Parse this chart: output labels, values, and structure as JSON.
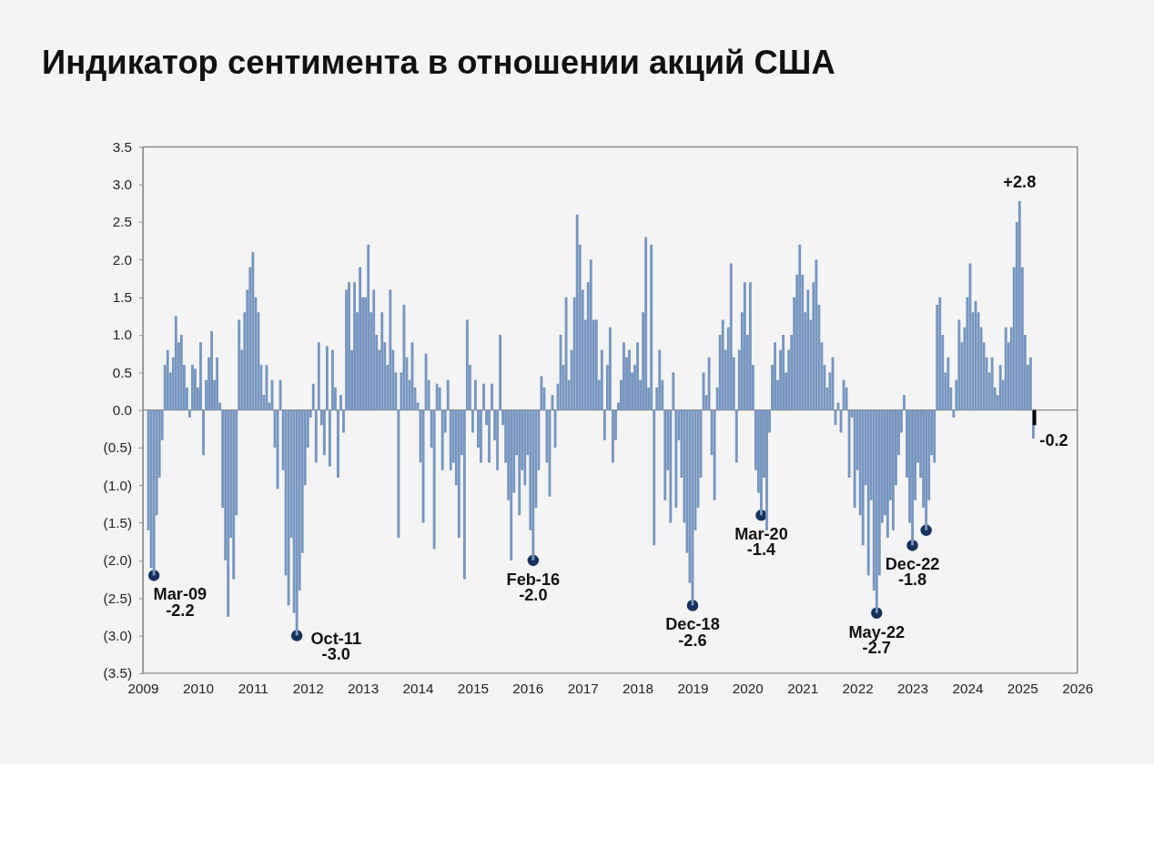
{
  "chart_data": {
    "type": "bar",
    "title": "Индикатор сентимента в отношении акций США",
    "xlim": [
      2009,
      2026
    ],
    "xticks": [
      2009,
      2010,
      2011,
      2012,
      2013,
      2014,
      2015,
      2016,
      2017,
      2018,
      2019,
      2020,
      2021,
      2022,
      2023,
      2024,
      2025,
      2026
    ],
    "ylim": [
      -3.5,
      3.5
    ],
    "yticks": [
      {
        "value": -3.5,
        "label": "(3.5)"
      },
      {
        "value": -3,
        "label": "(3.0)"
      },
      {
        "value": -2.5,
        "label": "(2.5)"
      },
      {
        "value": -2,
        "label": "(2.0)"
      },
      {
        "value": -1.5,
        "label": "(1.5)"
      },
      {
        "value": -1,
        "label": "(1.0)"
      },
      {
        "value": -0.5,
        "label": "(0.5)"
      },
      {
        "value": 0,
        "label": "0.0"
      },
      0.5,
      {
        "value": 1,
        "label": "1.0"
      },
      1.5,
      {
        "value": 2,
        "label": "2.0"
      },
      2.5,
      {
        "value": 3,
        "label": "3.0"
      },
      3.5
    ],
    "x": [
      2009.1,
      2009.15,
      2009.2,
      2009.25,
      2009.3,
      2009.35,
      2009.4,
      2009.45,
      2009.5,
      2009.55,
      2009.6,
      2009.65,
      2009.7,
      2009.75,
      2009.8,
      2009.85,
      2009.9,
      2009.95,
      2010.0,
      2010.05,
      2010.1,
      2010.15,
      2010.2,
      2010.25,
      2010.3,
      2010.35,
      2010.4,
      2010.45,
      2010.5,
      2010.55,
      2010.6,
      2010.65,
      2010.7,
      2010.75,
      2010.8,
      2010.85,
      2010.9,
      2010.95,
      2011.0,
      2011.05,
      2011.1,
      2011.15,
      2011.2,
      2011.25,
      2011.3,
      2011.35,
      2011.4,
      2011.45,
      2011.5,
      2011.55,
      2011.6,
      2011.65,
      2011.7,
      2011.75,
      2011.8,
      2011.85,
      2011.9,
      2011.95,
      2012.0,
      2012.05,
      2012.1,
      2012.15,
      2012.2,
      2012.25,
      2012.3,
      2012.35,
      2012.4,
      2012.45,
      2012.5,
      2012.55,
      2012.6,
      2012.65,
      2012.7,
      2012.75,
      2012.8,
      2012.85,
      2012.9,
      2012.95,
      2013.0,
      2013.05,
      2013.1,
      2013.15,
      2013.2,
      2013.25,
      2013.3,
      2013.35,
      2013.4,
      2013.45,
      2013.5,
      2013.55,
      2013.6,
      2013.65,
      2013.7,
      2013.75,
      2013.8,
      2013.85,
      2013.9,
      2013.95,
      2014.0,
      2014.05,
      2014.1,
      2014.15,
      2014.2,
      2014.25,
      2014.3,
      2014.35,
      2014.4,
      2014.45,
      2014.5,
      2014.55,
      2014.6,
      2014.65,
      2014.7,
      2014.75,
      2014.8,
      2014.85,
      2014.9,
      2014.95,
      2015.0,
      2015.05,
      2015.1,
      2015.15,
      2015.2,
      2015.25,
      2015.3,
      2015.35,
      2015.4,
      2015.45,
      2015.5,
      2015.55,
      2015.6,
      2015.65,
      2015.7,
      2015.75,
      2015.8,
      2015.85,
      2015.9,
      2015.95,
      2016.0,
      2016.05,
      2016.1,
      2016.15,
      2016.2,
      2016.25,
      2016.3,
      2016.35,
      2016.4,
      2016.45,
      2016.5,
      2016.55,
      2016.6,
      2016.65,
      2016.7,
      2016.75,
      2016.8,
      2016.85,
      2016.9,
      2016.95,
      2017.0,
      2017.05,
      2017.1,
      2017.15,
      2017.2,
      2017.25,
      2017.3,
      2017.35,
      2017.4,
      2017.45,
      2017.5,
      2017.55,
      2017.6,
      2017.65,
      2017.7,
      2017.75,
      2017.8,
      2017.85,
      2017.9,
      2017.95,
      2018.0,
      2018.05,
      2018.1,
      2018.15,
      2018.2,
      2018.25,
      2018.3,
      2018.35,
      2018.4,
      2018.45,
      2018.5,
      2018.55,
      2018.6,
      2018.65,
      2018.7,
      2018.75,
      2018.8,
      2018.85,
      2018.9,
      2018.95,
      2019.0,
      2019.05,
      2019.1,
      2019.15,
      2019.2,
      2019.25,
      2019.3,
      2019.35,
      2019.4,
      2019.45,
      2019.5,
      2019.55,
      2019.6,
      2019.65,
      2019.7,
      2019.75,
      2019.8,
      2019.85,
      2019.9,
      2019.95,
      2020.0,
      2020.05,
      2020.1,
      2020.15,
      2020.2,
      2020.25,
      2020.3,
      2020.35,
      2020.4,
      2020.45,
      2020.5,
      2020.55,
      2020.6,
      2020.65,
      2020.7,
      2020.75,
      2020.8,
      2020.85,
      2020.9,
      2020.95,
      2021.0,
      2021.05,
      2021.1,
      2021.15,
      2021.2,
      2021.25,
      2021.3,
      2021.35,
      2021.4,
      2021.45,
      2021.5,
      2021.55,
      2021.6,
      2021.65,
      2021.7,
      2021.75,
      2021.8,
      2021.85,
      2021.9,
      2021.95,
      2022.0,
      2022.05,
      2022.1,
      2022.15,
      2022.2,
      2022.25,
      2022.3,
      2022.35,
      2022.4,
      2022.45,
      2022.5,
      2022.55,
      2022.6,
      2022.65,
      2022.7,
      2022.75,
      2022.8,
      2022.85,
      2022.9,
      2022.95,
      2023.0,
      2023.05,
      2023.1,
      2023.15,
      2023.2,
      2023.25,
      2023.3,
      2023.35,
      2023.4,
      2023.45,
      2023.5,
      2023.55,
      2023.6,
      2023.65,
      2023.7,
      2023.75,
      2023.8,
      2023.85,
      2023.9,
      2023.95,
      2024.0,
      2024.05,
      2024.1,
      2024.15,
      2024.2,
      2024.25,
      2024.3,
      2024.35,
      2024.4,
      2024.45,
      2024.5,
      2024.55,
      2024.6,
      2024.65,
      2024.7,
      2024.75,
      2024.8,
      2024.85,
      2024.9,
      2024.95,
      2025.0,
      2025.05,
      2025.1,
      2025.15,
      2025.2
    ],
    "series": [
      {
        "color": "#7796c0",
        "values": [
          -1.6,
          -2.1,
          -2.2,
          -1.4,
          -0.9,
          -0.4,
          0.6,
          0.8,
          0.5,
          0.7,
          1.25,
          0.9,
          1.0,
          0.6,
          0.3,
          -0.1,
          0.6,
          0.55,
          0.3,
          0.9,
          -0.6,
          0.4,
          0.7,
          1.05,
          0.4,
          0.7,
          0.1,
          -1.3,
          -2.0,
          -2.75,
          -1.7,
          -2.25,
          -1.4,
          1.2,
          0.8,
          1.3,
          1.6,
          1.9,
          2.1,
          1.5,
          1.3,
          0.6,
          0.2,
          0.6,
          0.1,
          0.4,
          -0.5,
          -1.05,
          0.4,
          -0.8,
          -2.2,
          -2.6,
          -1.7,
          -2.7,
          -3.0,
          -2.4,
          -1.9,
          -1.0,
          -0.5,
          -0.1,
          0.35,
          -0.7,
          0.9,
          -0.2,
          -0.6,
          0.85,
          -0.75,
          0.8,
          0.3,
          -0.9,
          0.2,
          -0.3,
          1.6,
          1.7,
          0.8,
          1.7,
          1.3,
          1.9,
          1.5,
          1.5,
          2.2,
          1.3,
          1.6,
          1.0,
          0.8,
          1.3,
          0.9,
          0.6,
          1.6,
          0.8,
          0.5,
          -1.7,
          0.5,
          1.4,
          0.7,
          0.4,
          0.9,
          0.3,
          0.1,
          -0.7,
          -1.5,
          0.75,
          0.4,
          -0.5,
          -1.85,
          0.35,
          0.3,
          -0.8,
          -0.3,
          0.4,
          -0.8,
          -0.7,
          -1.0,
          -1.7,
          -0.6,
          -2.25,
          1.2,
          0.6,
          -0.3,
          0.4,
          -0.5,
          -0.7,
          0.35,
          -0.2,
          -0.7,
          0.35,
          -0.4,
          -0.8,
          1.0,
          -0.2,
          -0.7,
          -1.2,
          -2.0,
          -1.1,
          -0.6,
          -1.4,
          -0.8,
          -1.0,
          -0.6,
          -1.6,
          -2.0,
          -1.3,
          -0.8,
          0.45,
          0.3,
          -0.7,
          -1.15,
          0.2,
          -0.5,
          0.35,
          1.0,
          0.6,
          1.5,
          0.4,
          0.8,
          1.5,
          2.6,
          2.2,
          1.6,
          1.2,
          1.7,
          2.0,
          1.2,
          1.2,
          0.4,
          0.8,
          -0.4,
          0.6,
          1.1,
          -0.7,
          -0.4,
          0.1,
          0.4,
          0.9,
          0.7,
          0.8,
          0.5,
          0.6,
          0.9,
          0.4,
          1.3,
          2.3,
          0.3,
          2.2,
          -1.8,
          0.3,
          0.8,
          0.4,
          -1.2,
          -0.8,
          -1.5,
          0.5,
          -1.3,
          -0.4,
          -0.9,
          -1.5,
          -1.9,
          -2.3,
          -2.6,
          -1.6,
          -1.3,
          -0.9,
          0.5,
          0.2,
          0.7,
          -0.6,
          -1.2,
          0.3,
          1.0,
          1.2,
          0.8,
          1.1,
          1.95,
          0.7,
          -0.7,
          0.8,
          1.3,
          1.7,
          1.0,
          1.7,
          0.6,
          -0.8,
          -1.1,
          -1.4,
          -0.9,
          -1.6,
          -0.3,
          0.6,
          0.9,
          0.4,
          0.8,
          1.0,
          0.5,
          0.8,
          1.0,
          1.5,
          1.8,
          2.2,
          1.8,
          1.3,
          1.6,
          1.2,
          1.7,
          2.0,
          1.4,
          0.9,
          0.6,
          0.3,
          0.5,
          0.7,
          -0.2,
          0.1,
          -0.3,
          0.4,
          0.3,
          -0.9,
          -0.1,
          -1.3,
          -0.8,
          -1.4,
          -1.8,
          -1.0,
          -2.2,
          -1.2,
          -2.4,
          -2.7,
          -2.2,
          -1.5,
          -1.4,
          -1.7,
          -1.2,
          -1.6,
          -1.0,
          -0.6,
          -0.3,
          0.2,
          -0.9,
          -1.5,
          -1.8,
          -1.2,
          -0.7,
          -0.9,
          -1.3,
          -1.6,
          -1.2,
          -0.6,
          -0.7,
          1.4,
          1.5,
          1.0,
          0.5,
          0.7,
          0.3,
          -0.1,
          0.4,
          1.2,
          0.9,
          1.1,
          1.5,
          1.95,
          1.3,
          1.45,
          1.3,
          1.1,
          0.9,
          0.7,
          0.5,
          0.7,
          0.3,
          0.2,
          0.6,
          0.4,
          1.1,
          0.9,
          1.1,
          1.9,
          2.5,
          2.78,
          1.9,
          1.0,
          0.6,
          0.7,
          -0.38
        ]
      },
      {
        "type": "bar",
        "color": "#000000",
        "x": [
          2025.22
        ],
        "values": [
          -0.2
        ]
      },
      {
        "type": "scatter",
        "color": "#17325a",
        "x": [
          2009.2,
          2011.8,
          2016.1,
          2019.0,
          2020.25,
          2022.35,
          2023.0,
          2023.25
        ],
        "values": [
          -2.2,
          -3.0,
          -2.0,
          -2.6,
          -1.4,
          -2.7,
          -1.8,
          -1.6
        ],
        "value_labels": [
          "-2.2",
          "-3.0",
          "-2.0",
          "-2.6",
          "-1.4",
          "-2.7",
          "-1.8",
          null
        ]
      }
    ],
    "ref_lines": [
      {
        "axis": "y",
        "value": 0,
        "color": "#8c8c8c"
      }
    ],
    "annotations": [
      {
        "text": "Mar-09",
        "x": 2009.2,
        "y": -2.2
      },
      {
        "text": "Oct-11",
        "x": 2011.8,
        "y": -3.0
      },
      {
        "text": "Feb-16",
        "x": 2016.1,
        "y": -2.0
      },
      {
        "text": "Dec-18",
        "x": 2019.0,
        "y": -2.6
      },
      {
        "text": "Mar-20",
        "x": 2020.25,
        "y": -1.4
      },
      {
        "text": "May-22",
        "x": 2022.35,
        "y": -2.7
      },
      {
        "text": "Dec-22",
        "x": 2023.0,
        "y": -1.8
      },
      {
        "text": "+2.8",
        "x": 2024.95,
        "y": 2.78
      },
      {
        "text": "-0.2",
        "x": 2025.22,
        "y": -0.2
      }
    ]
  }
}
